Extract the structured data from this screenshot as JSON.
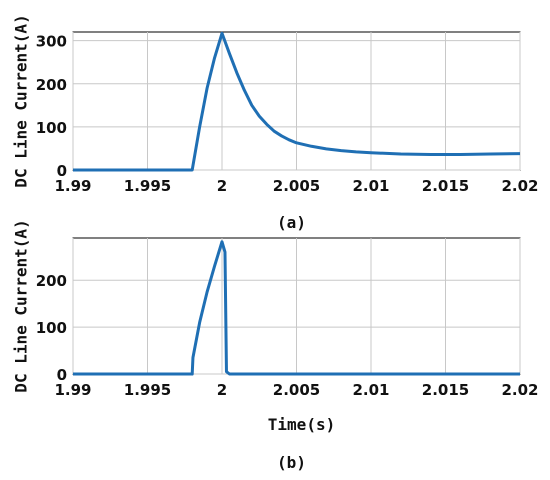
{
  "chart_data": [
    {
      "type": "line",
      "caption": "(a)",
      "ylabel": "DC Line Current(A)",
      "xlabel": "",
      "xlim": [
        1.99,
        2.02
      ],
      "ylim": [
        0,
        320
      ],
      "xticks": [
        1.99,
        1.995,
        2,
        2.005,
        2.01,
        2.015,
        2.02
      ],
      "xtick_labels": [
        "1.99",
        "1.995",
        "2",
        "2.005",
        "2.01",
        "2.015",
        "2.02"
      ],
      "yticks": [
        0,
        100,
        200,
        300
      ],
      "ytick_labels": [
        "0",
        "100",
        "200",
        "300"
      ],
      "grid": true,
      "color": "#1f6fb4",
      "series": [
        {
          "x": [
            1.99,
            1.998,
            1.9985,
            1.999,
            1.9995,
            2.0,
            2.0005,
            2.001,
            2.0015,
            2.002,
            2.0025,
            2.003,
            2.0035,
            2.004,
            2.0045,
            2.005,
            2.006,
            2.007,
            2.008,
            2.009,
            2.01,
            2.012,
            2.014,
            2.016,
            2.018,
            2.02
          ],
          "y": [
            0,
            0,
            100,
            190,
            260,
            317,
            270,
            225,
            185,
            150,
            125,
            106,
            90,
            79,
            70,
            63,
            55,
            49,
            45,
            42,
            40,
            37,
            36,
            36,
            37,
            38
          ]
        }
      ]
    },
    {
      "type": "line",
      "caption": "(b)",
      "ylabel": "DC Line Current(A)",
      "xlabel": "Time(s)",
      "xlim": [
        1.99,
        2.02
      ],
      "ylim": [
        0,
        290
      ],
      "xticks": [
        1.99,
        1.995,
        2,
        2.005,
        2.01,
        2.015,
        2.02
      ],
      "xtick_labels": [
        "1.99",
        "1.995",
        "2",
        "2.005",
        "2.01",
        "2.015",
        "2.02"
      ],
      "yticks": [
        0,
        100,
        200
      ],
      "ytick_labels": [
        "0",
        "100",
        "200"
      ],
      "grid": true,
      "color": "#1f6fb4",
      "series": [
        {
          "x": [
            1.99,
            1.998,
            1.99805,
            1.9985,
            1.999,
            1.9995,
            2.0,
            2.0002,
            2.0003,
            2.0005,
            2.02
          ],
          "y": [
            0,
            0,
            35,
            110,
            175,
            230,
            282,
            260,
            5,
            0,
            0
          ]
        }
      ]
    }
  ]
}
